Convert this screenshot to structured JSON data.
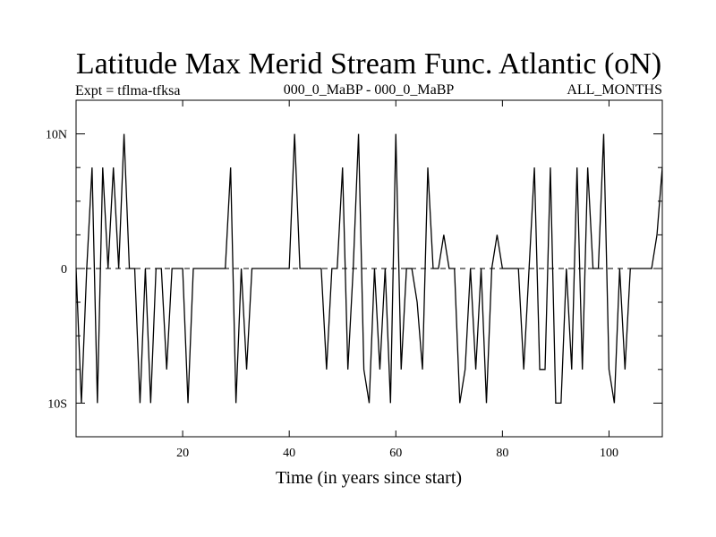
{
  "chart_data": {
    "type": "line",
    "title": "Latitude Max Merid Stream Func. Atlantic (oN)",
    "subtitle_left": "Expt = tflma-tfksa",
    "subtitle_center": "000_0_MaBP - 000_0_MaBP",
    "subtitle_right": "ALL_MONTHS",
    "xlabel": "Time (in years since start)",
    "ylabel": "",
    "xlim": [
      0,
      110
    ],
    "ylim": [
      -12.5,
      12.5
    ],
    "x_ticks": [
      20,
      40,
      60,
      80,
      100
    ],
    "x_tick_labels": [
      "20",
      "40",
      "60",
      "80",
      "100"
    ],
    "y_ticks": [
      -10,
      0,
      10
    ],
    "y_tick_labels": [
      "10S",
      "0",
      "10N"
    ],
    "y_minor_ticks": [
      -7.5,
      -5,
      -2.5,
      2.5,
      5,
      7.5
    ],
    "series": [
      {
        "name": "Latitude Max Merid Stream Func",
        "x": [
          0,
          1,
          2,
          3,
          4,
          5,
          6,
          7,
          8,
          9,
          10,
          11,
          12,
          13,
          14,
          15,
          16,
          17,
          18,
          19,
          20,
          21,
          22,
          23,
          24,
          25,
          26,
          27,
          28,
          29,
          30,
          31,
          32,
          33,
          34,
          35,
          36,
          37,
          38,
          39,
          40,
          41,
          42,
          43,
          44,
          45,
          46,
          47,
          48,
          49,
          50,
          51,
          52,
          53,
          54,
          55,
          56,
          57,
          58,
          59,
          60,
          61,
          62,
          63,
          64,
          65,
          66,
          67,
          68,
          69,
          70,
          71,
          72,
          73,
          74,
          75,
          76,
          77,
          78,
          79,
          80,
          81,
          82,
          83,
          84,
          85,
          86,
          87,
          88,
          89,
          90,
          91,
          92,
          93,
          94,
          95,
          96,
          97,
          98,
          99,
          100,
          101,
          102,
          103,
          104,
          105,
          106,
          107,
          108,
          109,
          110
        ],
        "values": [
          0,
          -10,
          0,
          7.5,
          -10,
          7.5,
          0,
          7.5,
          0,
          10,
          0,
          0,
          -10,
          0,
          -10,
          0,
          0,
          -7.5,
          0,
          0,
          0,
          -10,
          0,
          0,
          0,
          0,
          0,
          0,
          0,
          7.5,
          -10,
          0,
          -7.5,
          0,
          0,
          0,
          0,
          0,
          0,
          0,
          0,
          10,
          0,
          0,
          0,
          0,
          0,
          -7.5,
          0,
          0,
          7.5,
          -7.5,
          0,
          10,
          -7.5,
          -10,
          0,
          -7.5,
          0,
          -10,
          10,
          -7.5,
          0,
          0,
          -2.5,
          -7.5,
          7.5,
          0,
          0,
          2.5,
          0,
          0,
          -10,
          -7.5,
          0,
          -7.5,
          0,
          -10,
          0,
          2.5,
          0,
          0,
          0,
          0,
          -7.5,
          0,
          7.5,
          -7.5,
          -7.5,
          7.5,
          -10,
          -10,
          0,
          -7.5,
          7.5,
          -7.5,
          7.5,
          0,
          0,
          10,
          -7.5,
          -10,
          0,
          -7.5,
          0,
          0,
          0,
          0,
          0,
          2.5,
          7.5
        ]
      }
    ]
  }
}
